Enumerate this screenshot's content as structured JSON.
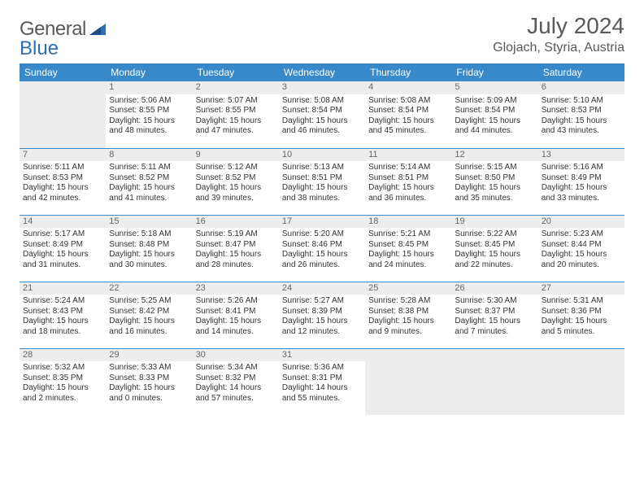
{
  "brand": {
    "part1": "General",
    "part2": "Blue"
  },
  "title": "July 2024",
  "location": "Glojach, Styria, Austria",
  "colors": {
    "header_bg": "#3789c9",
    "header_text": "#ffffff",
    "daynum_bg": "#ededed",
    "text": "#333333",
    "muted": "#595959",
    "rule": "#3789c9"
  },
  "fonts": {
    "title_size": 28,
    "location_size": 16,
    "th_size": 12,
    "cell_size": 10
  },
  "weekdays": [
    "Sunday",
    "Monday",
    "Tuesday",
    "Wednesday",
    "Thursday",
    "Friday",
    "Saturday"
  ],
  "layout": {
    "first_weekday_index": 1,
    "days_in_month": 31,
    "weeks": 5
  },
  "days": {
    "1": {
      "sunrise": "Sunrise: 5:06 AM",
      "sunset": "Sunset: 8:55 PM",
      "day1": "Daylight: 15 hours",
      "day2": "and 48 minutes."
    },
    "2": {
      "sunrise": "Sunrise: 5:07 AM",
      "sunset": "Sunset: 8:55 PM",
      "day1": "Daylight: 15 hours",
      "day2": "and 47 minutes."
    },
    "3": {
      "sunrise": "Sunrise: 5:08 AM",
      "sunset": "Sunset: 8:54 PM",
      "day1": "Daylight: 15 hours",
      "day2": "and 46 minutes."
    },
    "4": {
      "sunrise": "Sunrise: 5:08 AM",
      "sunset": "Sunset: 8:54 PM",
      "day1": "Daylight: 15 hours",
      "day2": "and 45 minutes."
    },
    "5": {
      "sunrise": "Sunrise: 5:09 AM",
      "sunset": "Sunset: 8:54 PM",
      "day1": "Daylight: 15 hours",
      "day2": "and 44 minutes."
    },
    "6": {
      "sunrise": "Sunrise: 5:10 AM",
      "sunset": "Sunset: 8:53 PM",
      "day1": "Daylight: 15 hours",
      "day2": "and 43 minutes."
    },
    "7": {
      "sunrise": "Sunrise: 5:11 AM",
      "sunset": "Sunset: 8:53 PM",
      "day1": "Daylight: 15 hours",
      "day2": "and 42 minutes."
    },
    "8": {
      "sunrise": "Sunrise: 5:11 AM",
      "sunset": "Sunset: 8:52 PM",
      "day1": "Daylight: 15 hours",
      "day2": "and 41 minutes."
    },
    "9": {
      "sunrise": "Sunrise: 5:12 AM",
      "sunset": "Sunset: 8:52 PM",
      "day1": "Daylight: 15 hours",
      "day2": "and 39 minutes."
    },
    "10": {
      "sunrise": "Sunrise: 5:13 AM",
      "sunset": "Sunset: 8:51 PM",
      "day1": "Daylight: 15 hours",
      "day2": "and 38 minutes."
    },
    "11": {
      "sunrise": "Sunrise: 5:14 AM",
      "sunset": "Sunset: 8:51 PM",
      "day1": "Daylight: 15 hours",
      "day2": "and 36 minutes."
    },
    "12": {
      "sunrise": "Sunrise: 5:15 AM",
      "sunset": "Sunset: 8:50 PM",
      "day1": "Daylight: 15 hours",
      "day2": "and 35 minutes."
    },
    "13": {
      "sunrise": "Sunrise: 5:16 AM",
      "sunset": "Sunset: 8:49 PM",
      "day1": "Daylight: 15 hours",
      "day2": "and 33 minutes."
    },
    "14": {
      "sunrise": "Sunrise: 5:17 AM",
      "sunset": "Sunset: 8:49 PM",
      "day1": "Daylight: 15 hours",
      "day2": "and 31 minutes."
    },
    "15": {
      "sunrise": "Sunrise: 5:18 AM",
      "sunset": "Sunset: 8:48 PM",
      "day1": "Daylight: 15 hours",
      "day2": "and 30 minutes."
    },
    "16": {
      "sunrise": "Sunrise: 5:19 AM",
      "sunset": "Sunset: 8:47 PM",
      "day1": "Daylight: 15 hours",
      "day2": "and 28 minutes."
    },
    "17": {
      "sunrise": "Sunrise: 5:20 AM",
      "sunset": "Sunset: 8:46 PM",
      "day1": "Daylight: 15 hours",
      "day2": "and 26 minutes."
    },
    "18": {
      "sunrise": "Sunrise: 5:21 AM",
      "sunset": "Sunset: 8:45 PM",
      "day1": "Daylight: 15 hours",
      "day2": "and 24 minutes."
    },
    "19": {
      "sunrise": "Sunrise: 5:22 AM",
      "sunset": "Sunset: 8:45 PM",
      "day1": "Daylight: 15 hours",
      "day2": "and 22 minutes."
    },
    "20": {
      "sunrise": "Sunrise: 5:23 AM",
      "sunset": "Sunset: 8:44 PM",
      "day1": "Daylight: 15 hours",
      "day2": "and 20 minutes."
    },
    "21": {
      "sunrise": "Sunrise: 5:24 AM",
      "sunset": "Sunset: 8:43 PM",
      "day1": "Daylight: 15 hours",
      "day2": "and 18 minutes."
    },
    "22": {
      "sunrise": "Sunrise: 5:25 AM",
      "sunset": "Sunset: 8:42 PM",
      "day1": "Daylight: 15 hours",
      "day2": "and 16 minutes."
    },
    "23": {
      "sunrise": "Sunrise: 5:26 AM",
      "sunset": "Sunset: 8:41 PM",
      "day1": "Daylight: 15 hours",
      "day2": "and 14 minutes."
    },
    "24": {
      "sunrise": "Sunrise: 5:27 AM",
      "sunset": "Sunset: 8:39 PM",
      "day1": "Daylight: 15 hours",
      "day2": "and 12 minutes."
    },
    "25": {
      "sunrise": "Sunrise: 5:28 AM",
      "sunset": "Sunset: 8:38 PM",
      "day1": "Daylight: 15 hours",
      "day2": "and 9 minutes."
    },
    "26": {
      "sunrise": "Sunrise: 5:30 AM",
      "sunset": "Sunset: 8:37 PM",
      "day1": "Daylight: 15 hours",
      "day2": "and 7 minutes."
    },
    "27": {
      "sunrise": "Sunrise: 5:31 AM",
      "sunset": "Sunset: 8:36 PM",
      "day1": "Daylight: 15 hours",
      "day2": "and 5 minutes."
    },
    "28": {
      "sunrise": "Sunrise: 5:32 AM",
      "sunset": "Sunset: 8:35 PM",
      "day1": "Daylight: 15 hours",
      "day2": "and 2 minutes."
    },
    "29": {
      "sunrise": "Sunrise: 5:33 AM",
      "sunset": "Sunset: 8:33 PM",
      "day1": "Daylight: 15 hours",
      "day2": "and 0 minutes."
    },
    "30": {
      "sunrise": "Sunrise: 5:34 AM",
      "sunset": "Sunset: 8:32 PM",
      "day1": "Daylight: 14 hours",
      "day2": "and 57 minutes."
    },
    "31": {
      "sunrise": "Sunrise: 5:36 AM",
      "sunset": "Sunset: 8:31 PM",
      "day1": "Daylight: 14 hours",
      "day2": "and 55 minutes."
    }
  }
}
